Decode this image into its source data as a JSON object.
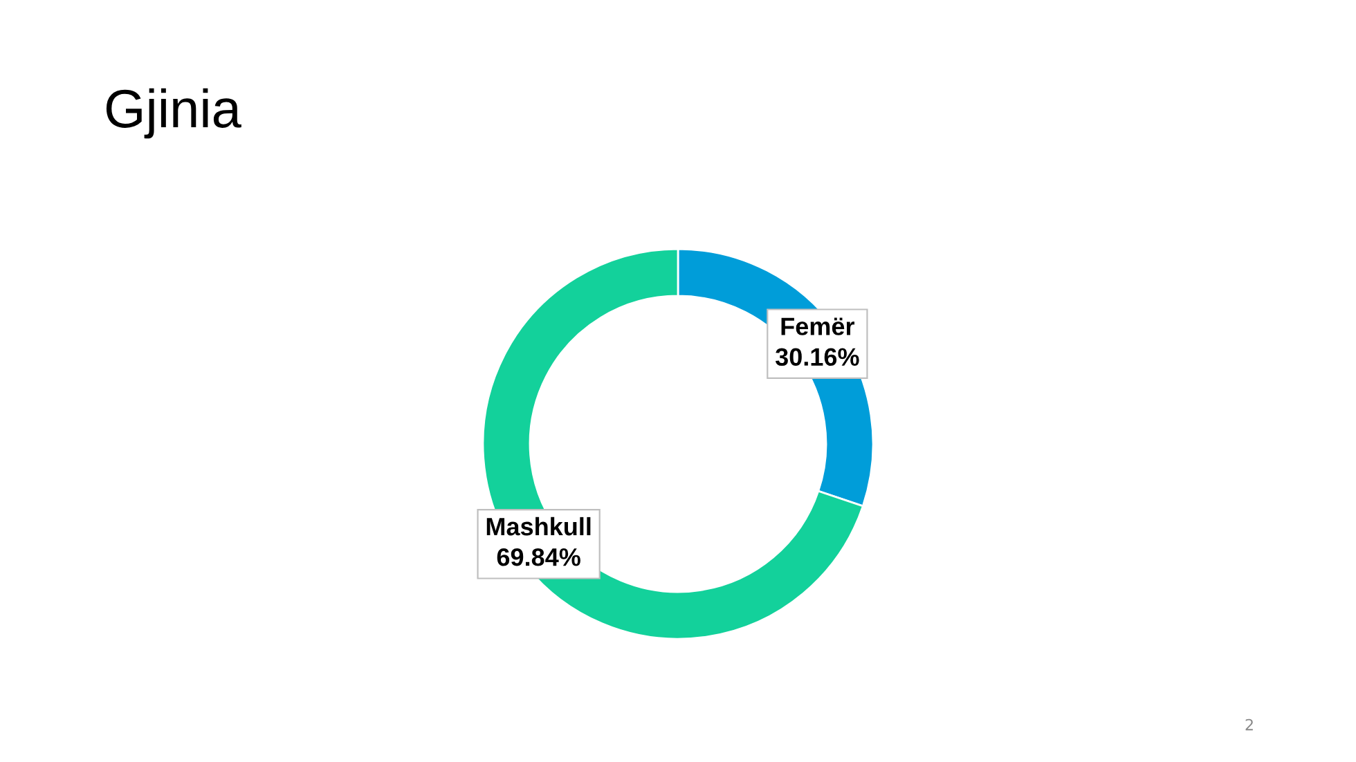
{
  "chart_data": {
    "type": "donut",
    "title": "Gjinia",
    "categories": [
      "Femër",
      "Mashkull"
    ],
    "values": [
      30.16,
      69.84
    ],
    "colors": [
      "#009dd9",
      "#13d19b"
    ],
    "value_labels": [
      "30.16%",
      "69.84%"
    ],
    "annotations": [
      "2"
    ],
    "legend": false
  }
}
